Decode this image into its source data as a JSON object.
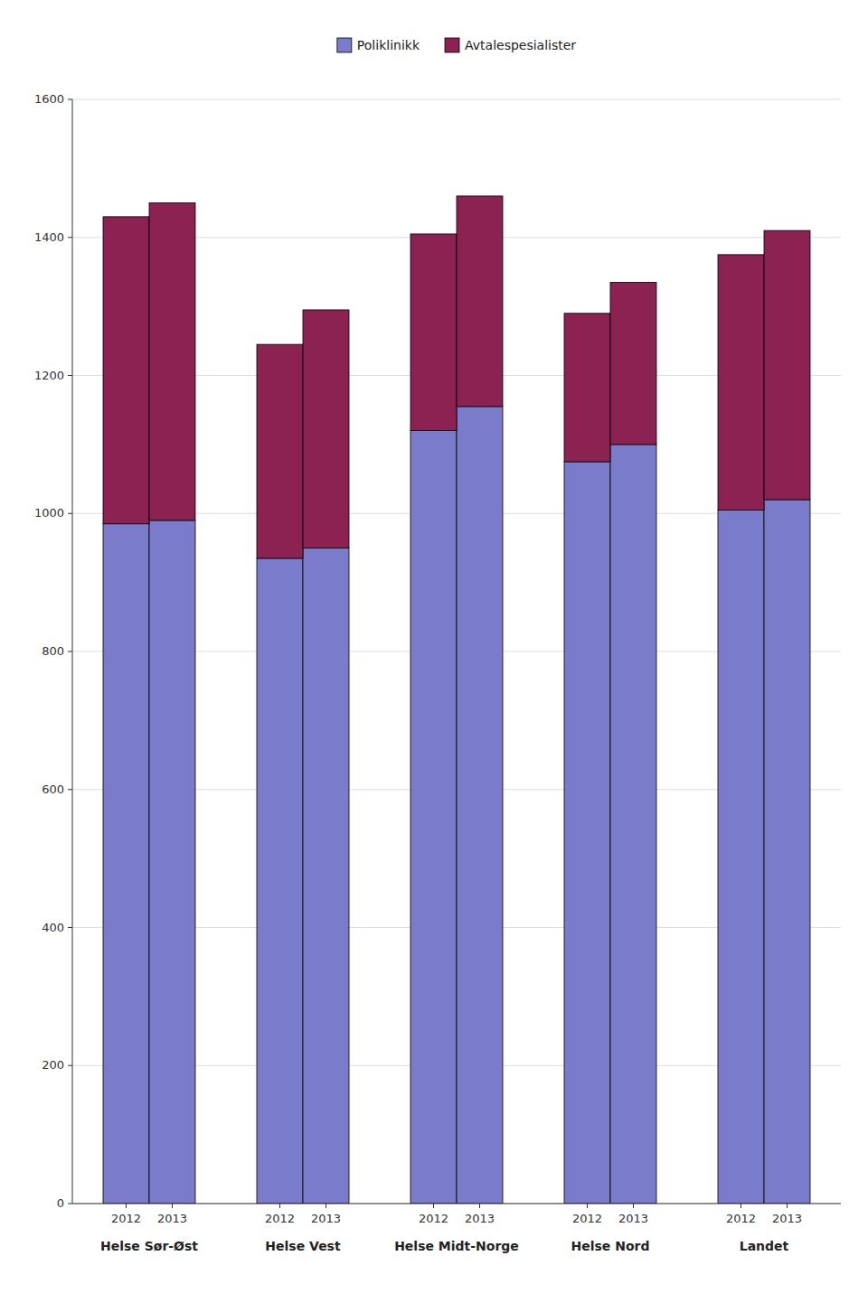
{
  "chart_data": {
    "type": "bar",
    "stacked": true,
    "categories": [
      "2012",
      "2013",
      "2012",
      "2013",
      "2012",
      "2013",
      "2012",
      "2013",
      "2012",
      "2013"
    ],
    "groups": [
      "Helse Sør-Øst",
      "Helse Vest",
      "Helse Midt-Norge",
      "Helse Nord",
      "Landet"
    ],
    "series": [
      {
        "name": "Poliklinikk",
        "color": "#7b7bcc",
        "values": [
          985,
          990,
          935,
          950,
          1120,
          1155,
          1075,
          1100,
          1005,
          1020
        ]
      },
      {
        "name": "Avtalespesialister",
        "color": "#8b2252",
        "values": [
          445,
          460,
          310,
          345,
          285,
          305,
          215,
          235,
          370,
          390
        ]
      }
    ],
    "ylim": [
      0,
      1600
    ],
    "yticks": [
      0,
      200,
      400,
      600,
      800,
      1000,
      1200,
      1400,
      1600
    ],
    "grid": true,
    "legend": "top"
  }
}
